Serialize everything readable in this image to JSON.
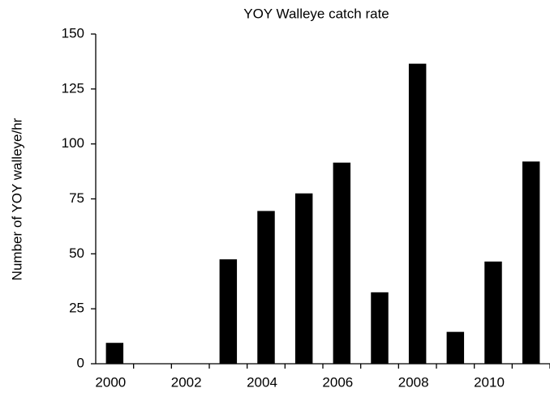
{
  "chart_data": {
    "type": "bar",
    "title": "YOY Walleye catch rate",
    "y_label": "Number of YOY walleye/hr",
    "categories": [
      "2000",
      null,
      "2002",
      null,
      "2004",
      null,
      "2006",
      null,
      "2008",
      null,
      "2010",
      null
    ],
    "values": [
      9.5,
      0,
      0,
      47.5,
      69.5,
      77.5,
      91.5,
      32.5,
      136.5,
      14.5,
      46.5,
      92
    ],
    "color": "#000000",
    "ylim": [
      0,
      150
    ],
    "yticks": [
      0,
      25,
      50,
      75,
      100,
      125,
      150
    ],
    "grid": false
  }
}
